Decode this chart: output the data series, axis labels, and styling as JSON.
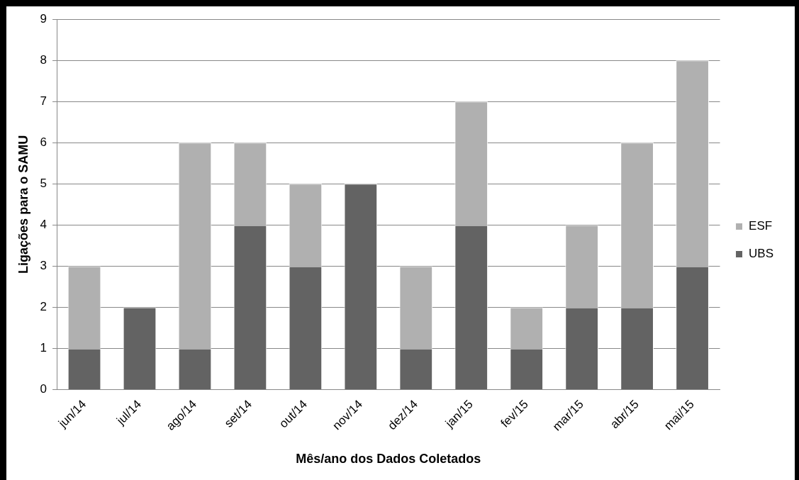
{
  "chart_data": {
    "type": "bar",
    "stacked": true,
    "xlabel": "Mês/ano dos Dados Coletados",
    "ylabel": "Ligações para o SAMU",
    "categories": [
      "jun/14",
      "jul/14",
      "ago/14",
      "set/14",
      "out/14",
      "nov/14",
      "dez/14",
      "jan/15",
      "fev/15",
      "mar/15",
      "abr/15",
      "mai/15"
    ],
    "series": [
      {
        "name": "UBS",
        "color": "#636363",
        "values": [
          1,
          2,
          1,
          4,
          3,
          5,
          1,
          4,
          1,
          2,
          2,
          3
        ]
      },
      {
        "name": "ESF",
        "color": "#b0b0b0",
        "values": [
          2,
          0,
          5,
          2,
          2,
          0,
          2,
          3,
          1,
          2,
          4,
          5
        ]
      }
    ],
    "ylim": [
      0,
      9
    ],
    "yticks": [
      0,
      1,
      2,
      3,
      4,
      5,
      6,
      7,
      8,
      9
    ],
    "grid": "y",
    "legend": "right"
  }
}
